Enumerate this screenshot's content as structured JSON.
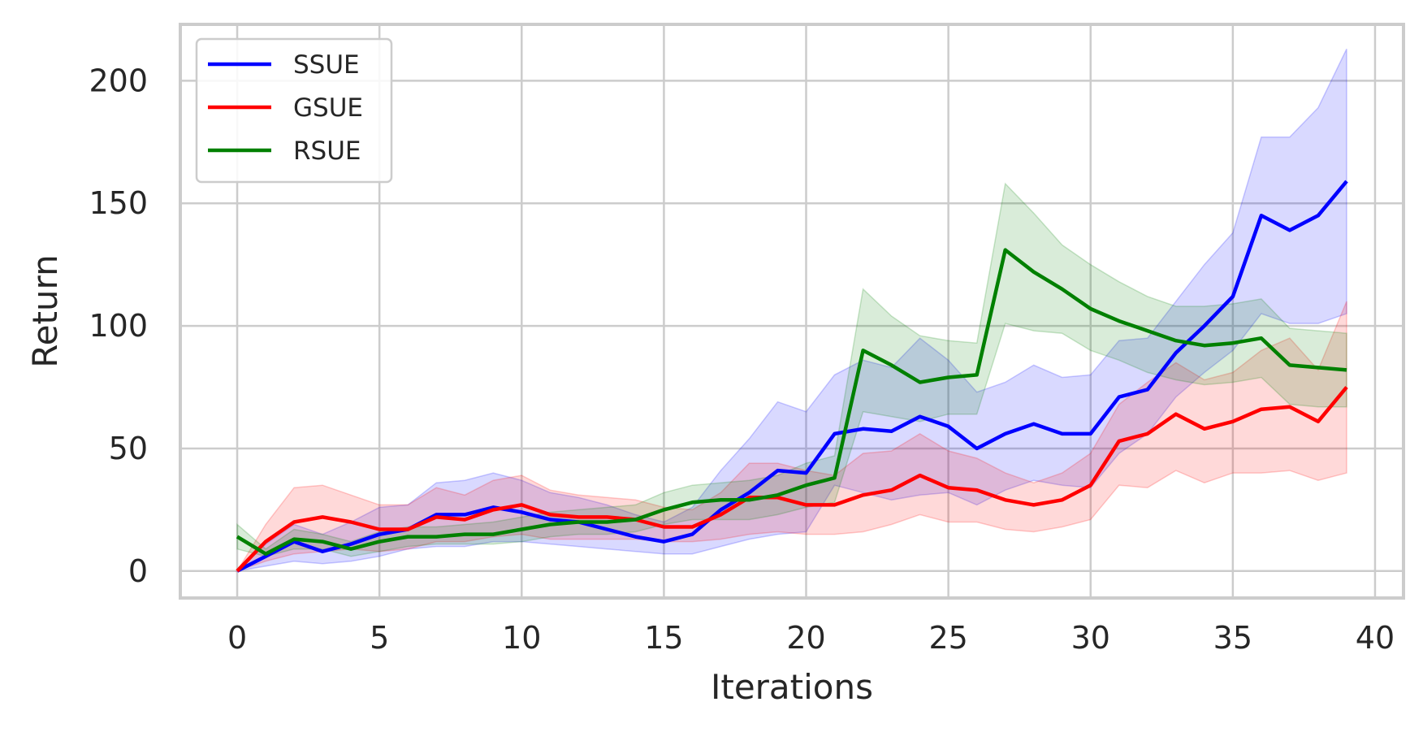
{
  "chart_data": {
    "type": "line",
    "title": "",
    "xlabel": "Iterations",
    "ylabel": "Return",
    "xlim": [
      -2,
      41
    ],
    "ylim": [
      -11,
      223
    ],
    "xticks": [
      0,
      5,
      10,
      15,
      20,
      25,
      30,
      35,
      40
    ],
    "yticks": [
      0,
      50,
      100,
      150,
      200
    ],
    "grid": true,
    "legend_position": "top-left",
    "x": [
      0,
      1,
      2,
      3,
      4,
      5,
      6,
      7,
      8,
      9,
      10,
      11,
      12,
      13,
      14,
      15,
      16,
      17,
      18,
      19,
      20,
      21,
      22,
      23,
      24,
      25,
      26,
      27,
      28,
      29,
      30,
      31,
      32,
      33,
      34,
      35,
      36,
      37,
      38,
      39
    ],
    "series": [
      {
        "name": "SSUE",
        "color": "#0000ff",
        "values": [
          0,
          6,
          12,
          8,
          11,
          15,
          17,
          23,
          23,
          26,
          24,
          21,
          20,
          17,
          14,
          12,
          15,
          25,
          32,
          41,
          40,
          56,
          58,
          57,
          63,
          59,
          50,
          56,
          60,
          56,
          56,
          71,
          74,
          89,
          100,
          112,
          145,
          139,
          145,
          159
        ],
        "lower": [
          0,
          2,
          4,
          3,
          4,
          6,
          9,
          10,
          10,
          12,
          12,
          11,
          10,
          9,
          8,
          7,
          7,
          10,
          13,
          15,
          16,
          35,
          32,
          29,
          31,
          32,
          27,
          33,
          37,
          35,
          34,
          48,
          56,
          71,
          81,
          90,
          105,
          101,
          101,
          105
        ],
        "upper": [
          0,
          11,
          19,
          15,
          20,
          26,
          27,
          36,
          37,
          40,
          37,
          32,
          30,
          27,
          23,
          20,
          26,
          41,
          54,
          69,
          65,
          80,
          86,
          83,
          95,
          86,
          73,
          77,
          84,
          79,
          80,
          94,
          95,
          110,
          125,
          138,
          177,
          177,
          189,
          213
        ]
      },
      {
        "name": "GSUE",
        "color": "#ff0000",
        "values": [
          0,
          12,
          20,
          22,
          20,
          17,
          17,
          22,
          21,
          25,
          27,
          23,
          22,
          22,
          21,
          18,
          18,
          23,
          30,
          30,
          27,
          27,
          31,
          33,
          39,
          34,
          33,
          29,
          27,
          29,
          35,
          53,
          56,
          64,
          58,
          61,
          66,
          67,
          61,
          75
        ],
        "lower": [
          0,
          4,
          7,
          8,
          9,
          8,
          9,
          12,
          12,
          14,
          15,
          13,
          13,
          13,
          13,
          12,
          12,
          13,
          15,
          16,
          15,
          15,
          16,
          19,
          23,
          20,
          20,
          17,
          16,
          18,
          21,
          35,
          34,
          41,
          36,
          40,
          40,
          41,
          37,
          40
        ],
        "upper": [
          0,
          19,
          34,
          35,
          31,
          27,
          27,
          34,
          31,
          37,
          39,
          33,
          31,
          30,
          29,
          26,
          25,
          32,
          44,
          44,
          41,
          39,
          48,
          49,
          56,
          49,
          46,
          40,
          36,
          40,
          48,
          68,
          77,
          85,
          78,
          81,
          90,
          95,
          82,
          110
        ]
      },
      {
        "name": "RSUE",
        "color": "#008000",
        "values": [
          14,
          7,
          13,
          12,
          9,
          12,
          14,
          14,
          15,
          15,
          17,
          19,
          20,
          20,
          21,
          25,
          28,
          29,
          29,
          31,
          35,
          38,
          90,
          84,
          77,
          79,
          80,
          131,
          122,
          115,
          107,
          102,
          98,
          94,
          92,
          93,
          95,
          84,
          83,
          82
        ],
        "lower": [
          9,
          6,
          9,
          9,
          6,
          8,
          10,
          11,
          11,
          11,
          12,
          14,
          15,
          15,
          16,
          19,
          21,
          21,
          21,
          23,
          26,
          28,
          65,
          63,
          61,
          64,
          64,
          101,
          98,
          97,
          90,
          86,
          81,
          78,
          76,
          77,
          79,
          68,
          67,
          67
        ],
        "upper": [
          19,
          9,
          17,
          15,
          12,
          16,
          18,
          18,
          19,
          20,
          22,
          24,
          25,
          26,
          27,
          32,
          35,
          36,
          37,
          39,
          44,
          47,
          115,
          104,
          96,
          94,
          93,
          158,
          146,
          133,
          125,
          118,
          112,
          108,
          108,
          109,
          111,
          99,
          98,
          97
        ]
      }
    ]
  }
}
